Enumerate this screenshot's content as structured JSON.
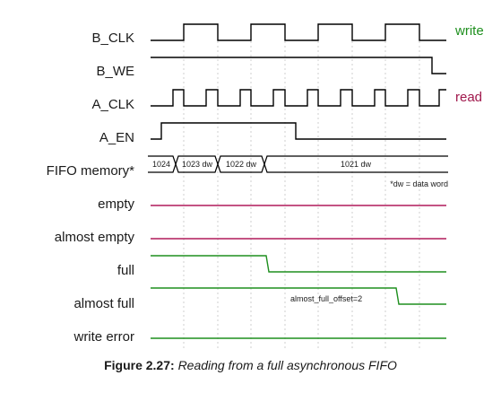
{
  "signals": [
    {
      "name": "B_CLK"
    },
    {
      "name": "B_WE"
    },
    {
      "name": "A_CLK"
    },
    {
      "name": "A_EN"
    },
    {
      "name": "FIFO memory*"
    },
    {
      "name": "empty"
    },
    {
      "name": "almost empty"
    },
    {
      "name": "full"
    },
    {
      "name": "almost full"
    },
    {
      "name": "write error"
    }
  ],
  "side_labels": {
    "write": "write",
    "read": "read"
  },
  "memory_cells": [
    "1024",
    "1023 dw",
    "1022 dw",
    "1021 dw"
  ],
  "notes": {
    "dw_note": "*dw = data word",
    "offset_note": "almost_full_offset=2"
  },
  "caption": {
    "number": "Figure 2.27:",
    "text": "Reading from a full asynchronous FIFO"
  },
  "colors": {
    "clock": "#000000",
    "write_label": "#1e8f1e",
    "read_label": "#a0184c",
    "empty_wave": "#b01a5a",
    "full_wave": "#1e8f1e"
  }
}
